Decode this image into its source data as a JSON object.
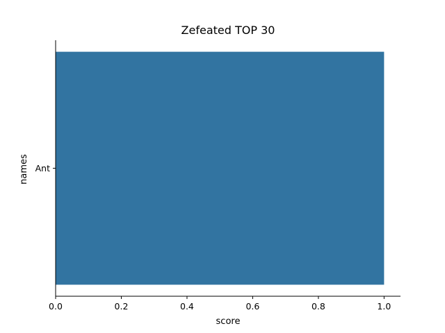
{
  "chart_data": {
    "type": "bar",
    "orientation": "horizontal",
    "title": "Zefeated TOP 30",
    "xlabel": "score",
    "ylabel": "names",
    "categories": [
      "Ant"
    ],
    "values": [
      1.0
    ],
    "xlim": [
      0,
      1.05
    ],
    "xticks": [
      "0.0",
      "0.2",
      "0.4",
      "0.6",
      "0.8",
      "1.0"
    ],
    "bar_color": "#3274a1",
    "grid": false,
    "legend": "none"
  }
}
